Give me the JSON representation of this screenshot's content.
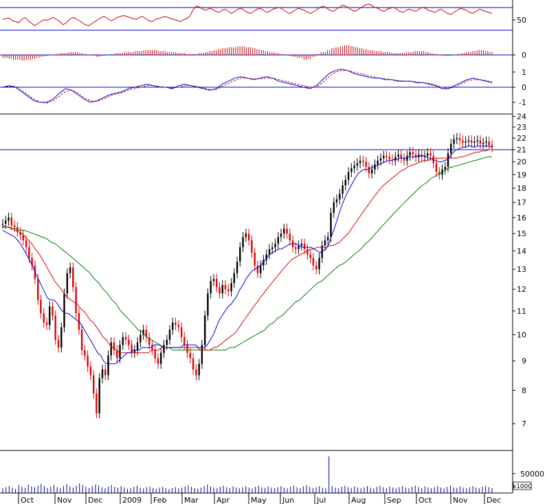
{
  "chart_data": {
    "type": "candlestick",
    "months": [
      "Oct",
      "Nov",
      "Dec",
      "2009",
      "Feb",
      "Mar",
      "Apr",
      "May",
      "Jun",
      "Jul",
      "Aug",
      "Sep",
      "Oct",
      "Nov",
      "Dec"
    ],
    "price_axis": {
      "scale": "log",
      "ticks": [
        7,
        8,
        9,
        10,
        11,
        12,
        13,
        14,
        15,
        16,
        17,
        18,
        19,
        20,
        21,
        22,
        23,
        24
      ],
      "ylim": [
        6.3,
        25.0
      ],
      "reference_line": 21
    },
    "price_series": {
      "close": [
        15.6,
        15.8,
        16.0,
        15.5,
        15.4,
        15.1,
        14.9,
        14.6,
        14.2,
        13.6,
        13.2,
        12.5,
        11.5,
        10.9,
        10.5,
        10.4,
        11.2,
        10.8,
        9.8,
        9.5,
        10.3,
        11.8,
        12.8,
        13.1,
        12.1,
        10.9,
        10.2,
        9.4,
        9.2,
        8.8,
        8.5,
        7.9,
        7.3,
        8.4,
        8.7,
        8.5,
        9.2,
        9.7,
        9.4,
        9.1,
        9.6,
        9.9,
        9.8,
        9.6,
        9.3,
        9.4,
        9.7,
        10.0,
        10.2,
        9.9,
        9.6,
        9.4,
        9.1,
        8.9,
        9.3,
        9.6,
        9.8,
        10.2,
        10.5,
        10.4,
        10.3,
        9.9,
        9.6,
        9.3,
        9.1,
        8.7,
        8.5,
        8.9,
        9.6,
        10.8,
        11.8,
        12.4,
        12.5,
        12.1,
        11.8,
        12.2,
        12.0,
        11.9,
        12.3,
        12.8,
        13.4,
        14.2,
        14.8,
        15.0,
        14.6,
        13.9,
        13.2,
        12.8,
        13.2,
        13.5,
        13.8,
        14.1,
        14.2,
        14.4,
        14.8,
        15.0,
        15.3,
        15.0,
        14.6,
        14.2,
        14.1,
        14.3,
        14.4,
        14.1,
        13.8,
        13.6,
        13.2,
        13.0,
        13.6,
        14.3,
        14.6,
        14.8,
        16.3,
        17.0,
        17.2,
        17.6,
        18.2,
        18.6,
        19.2,
        19.5,
        19.7,
        19.9,
        20.1,
        20.0,
        19.6,
        19.1,
        19.4,
        19.8,
        20.1,
        20.3,
        20.5,
        20.4,
        20.2,
        20.1,
        20.4,
        20.6,
        20.3,
        20.1,
        20.5,
        20.8,
        20.6,
        20.4,
        20.6,
        20.4,
        20.5,
        20.7,
        20.5,
        19.9,
        19.2,
        19.0,
        19.4,
        19.6,
        20.7,
        21.5,
        21.9,
        22.0,
        21.8,
        21.6,
        21.7,
        21.8,
        21.6,
        21.7,
        21.8,
        21.5,
        21.6,
        21.7,
        21.4,
        21.2
      ],
      "ma_short": [
        15.2,
        15.1,
        15.0,
        14.9,
        14.8,
        14.6,
        14.4,
        14.1,
        13.8,
        13.5,
        13.2,
        12.8,
        12.5,
        12.2,
        11.9,
        11.6,
        11.5,
        11.5,
        11.4,
        11.2,
        11.0,
        10.9,
        10.9,
        10.8,
        10.7,
        10.6,
        10.5,
        10.3,
        10.1,
        9.9,
        9.7,
        9.5,
        9.3,
        9.2,
        9.0,
        8.9,
        8.9,
        8.9,
        8.9,
        9.0,
        9.1,
        9.2,
        9.3,
        9.3,
        9.4,
        9.4,
        9.4,
        9.5,
        9.5,
        9.5,
        9.5,
        9.6,
        9.6,
        9.6,
        9.5,
        9.5,
        9.5,
        9.5,
        9.5,
        9.5,
        9.5,
        9.6,
        9.6,
        9.6,
        9.6,
        9.6,
        9.5,
        9.5,
        9.5,
        9.6,
        9.8,
        10.0,
        10.3,
        10.6,
        10.8,
        11.0,
        11.2,
        11.3,
        11.5,
        11.7,
        12.0,
        12.2,
        12.5,
        12.7,
        12.9,
        13.0,
        13.1,
        13.2,
        13.4,
        13.6,
        13.8,
        13.9,
        14.0,
        14.1,
        14.1,
        14.2,
        14.3,
        14.4,
        14.4,
        14.4,
        14.3,
        14.2,
        14.2,
        14.2,
        14.2,
        14.1,
        14.0,
        13.9,
        14.0,
        14.1,
        14.4,
        14.9,
        15.4,
        16.0,
        16.6,
        17.1,
        17.6,
        18.0,
        18.4,
        18.8,
        19.1,
        19.3,
        19.4,
        19.4,
        19.5,
        19.6,
        19.7,
        19.8,
        19.9,
        20.0,
        20.1,
        20.1,
        20.2,
        20.2,
        20.3,
        20.3,
        20.3,
        20.4,
        20.4,
        20.4,
        20.4,
        20.5,
        20.5,
        20.4,
        20.3,
        20.2,
        20.1,
        20.0,
        20.0,
        20.1,
        20.2,
        20.5,
        20.8,
        21.0,
        21.1,
        21.2,
        21.2,
        21.3,
        21.3,
        21.2,
        21.3,
        21.3,
        21.3,
        21.3,
        21.3,
        21.2
      ],
      "ma_mid": [
        15.5,
        15.4,
        15.4,
        15.3,
        15.2,
        15.1,
        15.0,
        14.8,
        14.6,
        14.4,
        14.1,
        13.9,
        13.6,
        13.3,
        13.0,
        12.7,
        12.4,
        12.2,
        12.0,
        11.8,
        11.6,
        11.5,
        11.4,
        11.3,
        11.1,
        11.0,
        10.8,
        10.6,
        10.5,
        10.3,
        10.1,
        9.9,
        9.8,
        9.6,
        9.5,
        9.4,
        9.3,
        9.3,
        9.3,
        9.3,
        9.3,
        9.3,
        9.3,
        9.3,
        9.3,
        9.3,
        9.4,
        9.4,
        9.4,
        9.5,
        9.5,
        9.5,
        9.5,
        9.5,
        9.5,
        9.5,
        9.5,
        9.5,
        9.5,
        9.5,
        9.5,
        9.4,
        9.4,
        9.4,
        9.4,
        9.5,
        9.5,
        9.6,
        9.7,
        9.8,
        9.9,
        10.0,
        10.1,
        10.3,
        10.5,
        10.7,
        10.9,
        11.1,
        11.3,
        11.5,
        11.7,
        11.9,
        12.1,
        12.3,
        12.5,
        12.7,
        12.9,
        13.1,
        13.3,
        13.5,
        13.6,
        13.7,
        13.8,
        13.9,
        14.0,
        14.1,
        14.1,
        14.2,
        14.2,
        14.2,
        14.2,
        14.3,
        14.3,
        14.4,
        14.5,
        14.7,
        14.9,
        15.1,
        15.4,
        15.7,
        16.0,
        16.3,
        16.6,
        16.9,
        17.2,
        17.5,
        17.8,
        18.1,
        18.3,
        18.5,
        18.7,
        18.9,
        19.1,
        19.3,
        19.4,
        19.6,
        19.7,
        19.8,
        19.9,
        20.0,
        20.1,
        20.1,
        20.2,
        20.3,
        20.3,
        20.3,
        20.3,
        20.3,
        20.3,
        20.3,
        20.3,
        20.4,
        20.4,
        20.5,
        20.6,
        20.7,
        20.8,
        20.8,
        20.9,
        20.9,
        21.0,
        21.0
      ],
      "ma_long": [
        15.4,
        15.4,
        15.3,
        15.3,
        15.2,
        15.2,
        15.1,
        15.0,
        14.9,
        14.8,
        14.7,
        14.5,
        14.4,
        14.2,
        14.0,
        13.8,
        13.6,
        13.4,
        13.2,
        13.0,
        12.8,
        12.5,
        12.3,
        12.0,
        11.8,
        11.5,
        11.3,
        11.0,
        10.8,
        10.6,
        10.4,
        10.2,
        10.1,
        9.9,
        9.8,
        9.7,
        9.6,
        9.5,
        9.5,
        9.4,
        9.4,
        9.4,
        9.4,
        9.4,
        9.4,
        9.4,
        9.4,
        9.4,
        9.4,
        9.4,
        9.4,
        9.4,
        9.5,
        9.5,
        9.6,
        9.7,
        9.8,
        9.9,
        10.0,
        10.1,
        10.2,
        10.4,
        10.5,
        10.7,
        10.8,
        11.0,
        11.2,
        11.4,
        11.5,
        11.7,
        11.9,
        12.1,
        12.3,
        12.4,
        12.6,
        12.8,
        13.0,
        13.2,
        13.3,
        13.5,
        13.7,
        13.9,
        14.1,
        14.4,
        14.6,
        14.9,
        15.2,
        15.5,
        15.8,
        16.1,
        16.4,
        16.7,
        17.0,
        17.3,
        17.6,
        17.9,
        18.2,
        18.4,
        18.7,
        18.9,
        19.1,
        19.3,
        19.5,
        19.6,
        19.7,
        19.8,
        19.9,
        20.0,
        20.1,
        20.2,
        20.3,
        20.4,
        20.4
      ]
    },
    "oscillator_top": {
      "ticks": [
        50
      ],
      "reference": 50,
      "values": [
        42,
        44,
        45,
        40,
        38,
        36,
        42,
        46,
        40,
        35,
        30,
        34,
        38,
        42,
        40,
        44,
        46,
        42,
        38,
        32,
        36,
        42,
        46,
        44,
        40,
        36,
        32,
        30,
        34,
        38,
        42,
        46,
        48,
        44,
        40,
        42,
        46,
        48,
        50,
        48,
        46,
        44,
        42,
        46,
        48,
        44,
        40,
        38,
        42,
        44,
        46,
        48,
        46,
        44,
        42,
        40,
        38,
        42,
        44,
        50,
        62,
        68,
        66,
        62,
        60,
        64,
        62,
        58,
        56,
        60,
        62,
        58,
        54,
        58,
        62,
        64,
        60,
        56,
        54,
        58,
        62,
        64,
        60,
        56,
        58,
        62,
        64,
        66,
        62,
        58,
        54,
        56,
        60,
        64,
        62,
        60,
        56,
        54,
        58,
        62,
        66,
        68,
        64,
        60,
        58,
        62,
        66,
        70,
        68,
        64,
        60,
        58,
        62,
        66,
        70,
        72,
        70,
        66,
        64,
        60,
        58,
        62,
        64,
        66,
        62,
        58,
        56,
        60,
        62,
        60,
        58,
        62,
        66,
        64,
        60,
        58,
        56,
        60,
        62,
        58,
        54,
        52,
        56,
        60,
        64,
        62,
        60,
        56,
        54,
        58,
        62,
        60,
        58,
        56,
        54
      ],
      "label": "50"
    },
    "histogram": {
      "ticks": [
        0
      ],
      "values": [
        -0.3,
        -0.4,
        -0.5,
        -0.5,
        -0.6,
        -0.5,
        -0.4,
        -0.3,
        -0.2,
        -0.1,
        0,
        0.1,
        0.2,
        0.2,
        0.3,
        0.3,
        0.2,
        0.1,
        0,
        -0.1,
        -0.2,
        -0.1,
        0,
        0.1,
        0.2,
        0.2,
        0.3,
        0.3,
        0.4,
        0.4,
        0.5,
        0.5,
        0.5,
        0.4,
        0.4,
        0.3,
        0.3,
        0.2,
        0.2,
        0.1,
        0.1,
        0.1,
        0.2,
        0.3,
        0.4,
        0.5,
        0.6,
        0.7,
        0.8,
        0.8,
        0.9,
        0.9,
        0.8,
        0.7,
        0.6,
        0.5,
        0.4,
        0.3,
        0.2,
        0.1,
        0,
        -0.1,
        -0.2,
        -0.3,
        -0.5,
        -0.4,
        -0.2,
        0.1,
        0.3,
        0.5,
        0.7,
        0.8,
        0.9,
        1.0,
        0.9,
        0.8,
        0.7,
        0.6,
        0.5,
        0.4,
        0.4,
        0.3,
        0.3,
        0.2,
        0.2,
        0.2,
        0.3,
        0.3,
        0.4,
        0.4,
        0.3,
        0.2,
        0.1,
        0,
        -0.1,
        -0.1,
        0,
        0.1,
        0.2,
        0.3,
        0.4,
        0.5,
        0.5,
        0.4,
        0.3
      ]
    },
    "oscillator_mid": {
      "ticks": [
        1,
        0,
        -1
      ],
      "ylim": [
        -1.7,
        1.7
      ],
      "line": [
        0,
        0.1,
        0,
        -0.3,
        -0.6,
        -0.9,
        -1.0,
        -1.0,
        -0.8,
        -0.4,
        -0.1,
        -0.2,
        -0.5,
        -0.8,
        -1.0,
        -0.9,
        -0.7,
        -0.5,
        -0.4,
        -0.3,
        -0.1,
        0,
        0.1,
        0.2,
        0.1,
        0,
        0,
        -0.1,
        0.1,
        0.2,
        0.1,
        0,
        -0.1,
        -0.2,
        -0.1,
        0.2,
        0.4,
        0.6,
        0.7,
        0.6,
        0.5,
        0.6,
        0.7,
        0.6,
        0.4,
        0.3,
        0.2,
        0.1,
        0,
        -0.1,
        0.1,
        0.5,
        0.9,
        1.1,
        1.2,
        1.1,
        0.9,
        0.8,
        0.7,
        0.6,
        0.6,
        0.5,
        0.5,
        0.4,
        0.4,
        0.4,
        0.3,
        0.3,
        0.2,
        0.1,
        -0.1,
        -0.1,
        0.1,
        0.3,
        0.5,
        0.6,
        0.5,
        0.4,
        0.3
      ],
      "signal": [
        0,
        0.05,
        0.05,
        -0.2,
        -0.5,
        -0.8,
        -1.0,
        -1.05,
        -0.9,
        -0.6,
        -0.3,
        -0.2,
        -0.4,
        -0.7,
        -0.9,
        -0.95,
        -0.8,
        -0.6,
        -0.45,
        -0.35,
        -0.2,
        -0.1,
        0,
        0.1,
        0.1,
        0.05,
        0,
        -0.05,
        0,
        0.1,
        0.1,
        0.05,
        -0.05,
        -0.15,
        -0.15,
        0.05,
        0.25,
        0.45,
        0.6,
        0.6,
        0.55,
        0.55,
        0.6,
        0.6,
        0.5,
        0.4,
        0.3,
        0.2,
        0.1,
        0,
        0,
        0.3,
        0.7,
        1.0,
        1.1,
        1.1,
        1.0,
        0.9,
        0.8,
        0.7,
        0.6,
        0.55,
        0.5,
        0.45,
        0.4,
        0.4,
        0.35,
        0.3,
        0.25,
        0.15,
        0,
        -0.1,
        0,
        0.2,
        0.4,
        0.5,
        0.5,
        0.45,
        0.35
      ]
    },
    "volume": {
      "unit": "x1000",
      "ticks": [
        50000
      ],
      "ylim": [
        0,
        110000
      ],
      "values": [
        12000,
        15000,
        18000,
        14000,
        11000,
        20000,
        16000,
        13000,
        22000,
        17000,
        15000,
        19000,
        24000,
        18000,
        13000,
        16000,
        21000,
        15000,
        12000,
        18000,
        23000,
        17000,
        14000,
        19000,
        25000,
        20000,
        16000,
        13000,
        18000,
        22000,
        19000,
        15000,
        12000,
        17000,
        21000,
        16000,
        14000,
        18000,
        15000,
        11000,
        13000,
        16000,
        19000,
        14000,
        12000,
        15000,
        17000,
        13000,
        11000,
        14000,
        16000,
        12000,
        10000,
        13000,
        15000,
        12000,
        14000,
        17000,
        20000,
        16000,
        13000,
        11000,
        14000,
        18000,
        22000,
        17000,
        14000,
        12000,
        16000,
        19000,
        15000,
        13000,
        17000,
        14000,
        12000,
        15000,
        18000,
        14000,
        12000,
        16000,
        19000,
        15000,
        13000,
        17000,
        14000,
        12000,
        15000,
        18000,
        14000,
        12000,
        16000,
        19000,
        15000,
        13000,
        17000,
        20000,
        16000,
        13000,
        15000,
        18000,
        14000,
        12000,
        95000,
        18000,
        14000,
        12000,
        16000,
        19000,
        15000,
        13000,
        17000,
        14000,
        12000,
        15000,
        18000,
        14000,
        12000,
        16000,
        19000,
        15000,
        13000,
        17000,
        14000,
        12000,
        15000,
        18000,
        14000,
        12000,
        16000,
        19000,
        15000,
        13000,
        17000,
        14000,
        12000,
        15000,
        18000,
        14000,
        12000,
        16000,
        19000,
        15000,
        13000,
        17000,
        14000,
        12000,
        15000,
        18000,
        14000,
        12000,
        16000,
        19000,
        15000,
        13000
      ]
    },
    "colors": {
      "axis": "#000000",
      "reference": "#0000cc",
      "candle_up": "#000000",
      "candle_down": "#e00000",
      "ma_short": "#0000dd",
      "ma_mid": "#dd0000",
      "ma_long": "#007700",
      "oscillator": "#cc0000",
      "histogram": "#cc0000",
      "signal": "#cc0000",
      "volume": "#0000aa"
    }
  }
}
